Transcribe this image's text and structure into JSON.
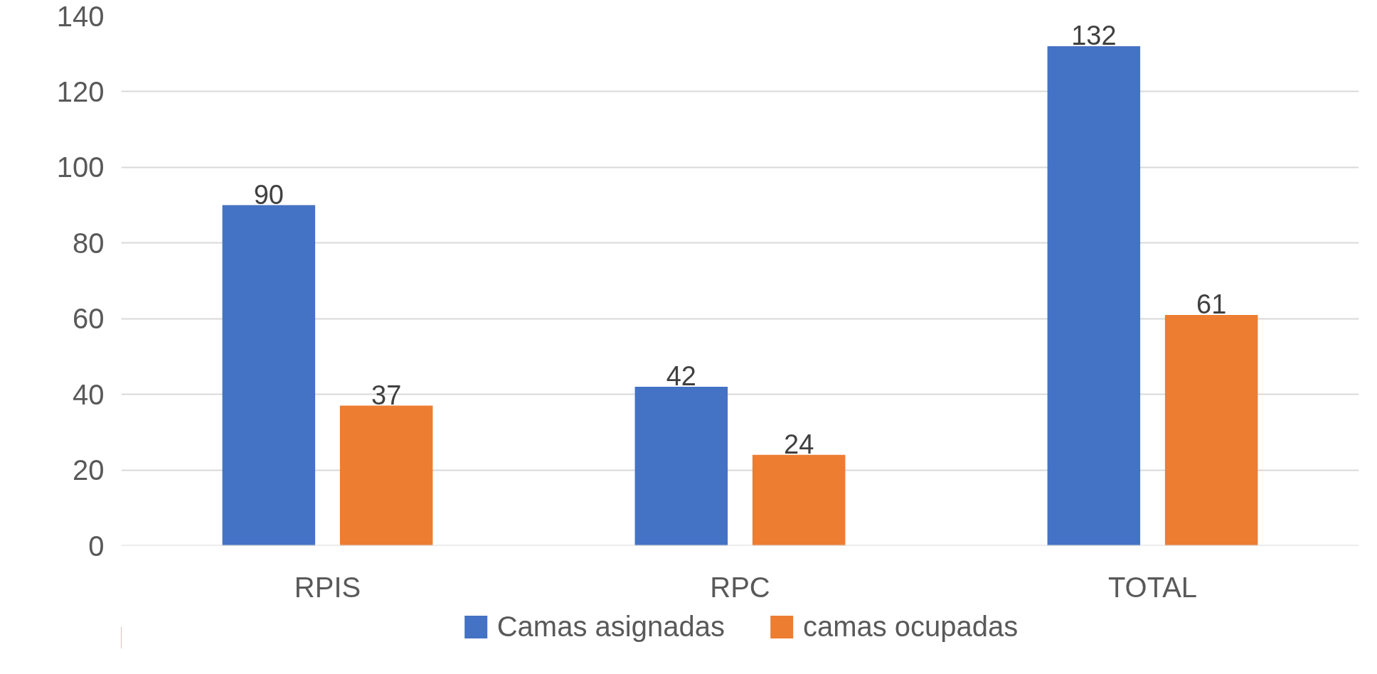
{
  "chart_data": {
    "type": "bar",
    "categories": [
      "RPIS",
      "RPC",
      "TOTAL"
    ],
    "series": [
      {
        "name": "Camas asignadas",
        "color": "#4472c4",
        "values": [
          90,
          42,
          132
        ]
      },
      {
        "name": "camas ocupadas",
        "color": "#ed7d31",
        "values": [
          37,
          24,
          61
        ]
      }
    ],
    "ylim": [
      0,
      140
    ],
    "yticks": [
      0,
      20,
      40,
      60,
      80,
      100,
      120,
      140
    ],
    "grid": "y",
    "legend": "bottom",
    "data_labels": true
  }
}
